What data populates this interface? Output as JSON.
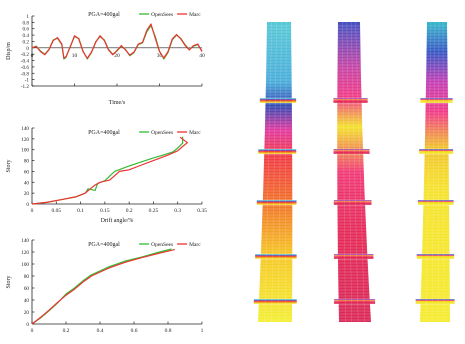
{
  "colors": {
    "opensees": "#33bb33",
    "marc": "#ee3333",
    "axis": "#222222",
    "grid": "#dddddd"
  },
  "chart_data": [
    {
      "type": "line",
      "annotation": "PGA=400gal",
      "xlabel": "Time/s",
      "ylabel": "Disp/m",
      "xlim": [
        0,
        40
      ],
      "ylim": [
        -1.2,
        1.0
      ],
      "xticks": [
        0,
        10,
        20,
        30,
        40
      ],
      "yticks": [
        -1.2,
        -1,
        -0.8,
        -0.6,
        -0.4,
        -0.2,
        0,
        0.2,
        0.4,
        0.6,
        0.8,
        1
      ],
      "grid": false,
      "legend": "top-right",
      "series": [
        {
          "name": "OpenSees",
          "x": [
            0,
            1,
            2,
            3,
            4,
            5,
            6,
            7,
            7.5,
            8,
            9,
            10,
            11,
            12,
            13,
            14,
            15,
            16,
            17,
            18,
            19,
            20,
            21,
            22,
            23,
            24,
            25,
            26,
            27,
            28,
            29,
            30,
            31,
            32,
            33,
            34,
            35,
            36,
            37,
            38,
            39,
            40
          ],
          "y": [
            0,
            0.05,
            -0.1,
            -0.2,
            -0.05,
            0.25,
            0.3,
            0.1,
            -0.35,
            -0.3,
            0.05,
            0.35,
            0.3,
            -0.1,
            -0.35,
            -0.15,
            0.2,
            0.35,
            0.25,
            -0.05,
            -0.2,
            -0.1,
            0.05,
            -0.05,
            -0.25,
            -0.15,
            0.1,
            0.15,
            0.5,
            0.7,
            0.35,
            -0.1,
            -0.35,
            -0.15,
            0.25,
            0.4,
            0.3,
            0.1,
            -0.05,
            0.05,
            0.1,
            -0.1
          ]
        },
        {
          "name": "Marc",
          "x": [
            0,
            1,
            2,
            3,
            4,
            5,
            6,
            7,
            7.5,
            8,
            9,
            10,
            11,
            12,
            13,
            14,
            15,
            16,
            17,
            18,
            19,
            20,
            21,
            22,
            23,
            24,
            25,
            26,
            27,
            28,
            29,
            30,
            31,
            32,
            33,
            34,
            35,
            36,
            37,
            38,
            39,
            40
          ],
          "y": [
            0,
            0.04,
            -0.12,
            -0.22,
            -0.06,
            0.23,
            0.32,
            0.12,
            -0.32,
            -0.28,
            0.03,
            0.38,
            0.28,
            -0.12,
            -0.33,
            -0.13,
            0.18,
            0.38,
            0.23,
            -0.07,
            -0.22,
            -0.08,
            0.07,
            -0.07,
            -0.23,
            -0.13,
            0.12,
            0.17,
            0.55,
            0.75,
            0.3,
            -0.12,
            -0.32,
            -0.12,
            0.28,
            0.42,
            0.28,
            0.08,
            -0.07,
            0.07,
            0.12,
            -0.12
          ]
        }
      ]
    },
    {
      "type": "line",
      "annotation": "PGA=400gal",
      "xlabel": "Drift angle/%",
      "ylabel": "Story",
      "xlim": [
        0,
        0.35
      ],
      "ylim": [
        0,
        140
      ],
      "xticks": [
        0,
        0.05,
        0.1,
        0.15,
        0.2,
        0.25,
        0.3,
        0.35
      ],
      "yticks": [
        0,
        20,
        40,
        60,
        80,
        100,
        120,
        140
      ],
      "grid": false,
      "legend": "top-right",
      "series": [
        {
          "name": "OpenSees",
          "x": [
            0,
            0.03,
            0.06,
            0.09,
            0.11,
            0.115,
            0.13,
            0.135,
            0.15,
            0.17,
            0.2,
            0.22,
            0.25,
            0.27,
            0.29,
            0.3,
            0.31,
            0.31
          ],
          "y": [
            0,
            3,
            8,
            13,
            20,
            28,
            25,
            38,
            43,
            60,
            70,
            76,
            85,
            90,
            96,
            103,
            112,
            124
          ]
        },
        {
          "name": "Marc",
          "x": [
            0,
            0.03,
            0.06,
            0.09,
            0.11,
            0.12,
            0.13,
            0.14,
            0.16,
            0.18,
            0.2,
            0.22,
            0.25,
            0.28,
            0.3,
            0.31,
            0.32,
            0.305
          ],
          "y": [
            0,
            3,
            8,
            13,
            20,
            28,
            35,
            40,
            44,
            60,
            63,
            70,
            80,
            90,
            98,
            106,
            113,
            123
          ]
        }
      ]
    },
    {
      "type": "line",
      "annotation": "PGA=400gal",
      "xlabel": "",
      "ylabel": "Story",
      "xlim": [
        0,
        1
      ],
      "ylim": [
        0,
        140
      ],
      "xticks": [
        0,
        0.2,
        0.4,
        0.6,
        0.8,
        1
      ],
      "yticks": [
        0,
        20,
        40,
        60,
        80,
        100,
        120,
        140
      ],
      "grid": false,
      "legend": "top-right",
      "series": [
        {
          "name": "OpenSees",
          "x": [
            0,
            0.05,
            0.1,
            0.15,
            0.2,
            0.25,
            0.3,
            0.35,
            0.45,
            0.55,
            0.65,
            0.75,
            0.82
          ],
          "y": [
            0,
            10,
            22,
            35,
            50,
            60,
            72,
            82,
            95,
            105,
            112,
            120,
            125
          ]
        },
        {
          "name": "Marc",
          "x": [
            0,
            0.05,
            0.1,
            0.15,
            0.2,
            0.25,
            0.3,
            0.35,
            0.45,
            0.55,
            0.65,
            0.75,
            0.84
          ],
          "y": [
            0,
            11,
            23,
            36,
            48,
            58,
            70,
            80,
            93,
            103,
            111,
            118,
            124
          ]
        }
      ]
    }
  ],
  "models": {
    "count": 3
  }
}
